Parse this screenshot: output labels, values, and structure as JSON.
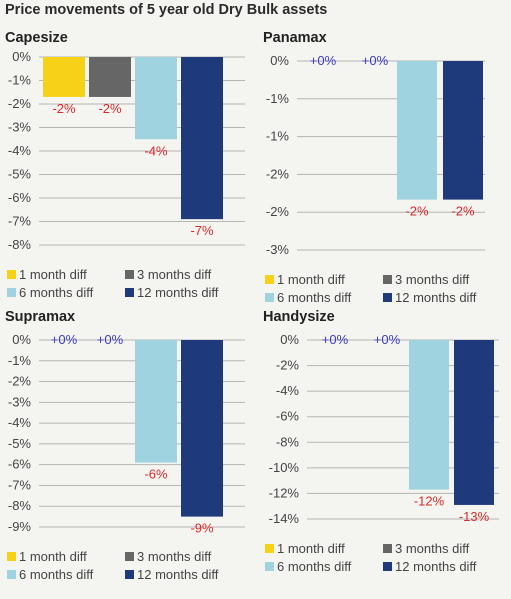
{
  "page_title": "Price movements of 5 year old Dry Bulk assets",
  "colors": {
    "one_month": "#f7d117",
    "three_months": "#666666",
    "six_months": "#9fd3e0",
    "twelve_months": "#1f3a7a",
    "negative_label": "#d92b2b",
    "zero_label": "#3b3bc8",
    "grid": "#b5b5b5"
  },
  "legend": [
    {
      "label": "1 month diff",
      "color": "#f7d117"
    },
    {
      "label": "3 months diff",
      "color": "#666666"
    },
    {
      "label": "6 months diff",
      "color": "#9fd3e0"
    },
    {
      "label": "12 months diff",
      "color": "#1f3a7a"
    }
  ],
  "chart_data": [
    {
      "type": "bar",
      "title": "Capesize",
      "categories": [
        "1 month diff",
        "3 months diff",
        "6 months diff",
        "12 months diff"
      ],
      "values": [
        -1.7,
        -1.7,
        -3.5,
        -6.9
      ],
      "data_labels": [
        "-2%",
        "-2%",
        "-4%",
        "-7%"
      ],
      "ylim": [
        -8,
        0
      ],
      "yticks": [
        "0%",
        "-1%",
        "-2%",
        "-3%",
        "-4%",
        "-5%",
        "-6%",
        "-7%",
        "-8%"
      ],
      "legend_position": "bottom"
    },
    {
      "type": "bar",
      "title": "Panamax",
      "categories": [
        "1 month diff",
        "3 months diff",
        "6 months diff",
        "12 months diff"
      ],
      "values": [
        0,
        0,
        -2.2,
        -2.2
      ],
      "data_labels": [
        "+0%",
        "+0%",
        "-2%",
        "-2%"
      ],
      "ylim": [
        -3,
        0
      ],
      "yticks": [
        "0%",
        "-1%",
        "-1%",
        "-2%",
        "-2%",
        "-3%"
      ],
      "legend_position": "bottom"
    },
    {
      "type": "bar",
      "title": "Supramax",
      "categories": [
        "1 month diff",
        "3 months diff",
        "6 months diff",
        "12 months diff"
      ],
      "values": [
        0,
        0,
        -5.9,
        -8.5
      ],
      "data_labels": [
        "+0%",
        "+0%",
        "-6%",
        "-9%"
      ],
      "ylim": [
        -9,
        0
      ],
      "yticks": [
        "0%",
        "-1%",
        "-2%",
        "-3%",
        "-4%",
        "-5%",
        "-6%",
        "-7%",
        "-8%",
        "-9%"
      ],
      "legend_position": "bottom"
    },
    {
      "type": "bar",
      "title": "Handysize",
      "categories": [
        "1 month diff",
        "3 months diff",
        "6 months diff",
        "12 months diff"
      ],
      "values": [
        0,
        0,
        -11.7,
        -12.9
      ],
      "data_labels": [
        "+0%",
        "+0%",
        "-12%",
        "-13%"
      ],
      "ylim": [
        -14,
        0
      ],
      "yticks": [
        "0%",
        "-2%",
        "-4%",
        "-6%",
        "-8%",
        "-10%",
        "-12%",
        "-14%"
      ],
      "legend_position": "bottom"
    }
  ]
}
